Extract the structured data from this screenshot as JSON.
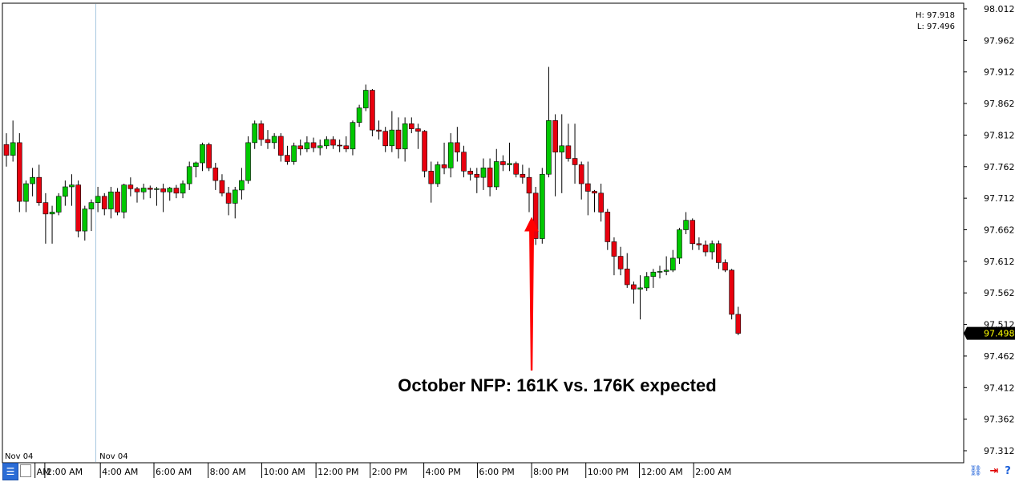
{
  "header": {
    "high_label": "H: 97.918",
    "low_label": "L: 97.496"
  },
  "price_tag": "97.498",
  "annotation": "October NFP: 161K vs. 176K expected",
  "colors": {
    "bull": "#00c800",
    "bear": "#e8000e",
    "wick": "#000000",
    "grid": "#c8c8c8",
    "arrow": "#ff0000",
    "price_tag_bg": "#000000",
    "price_tag_fg": "#ffff00"
  },
  "icons": {
    "left_toolbar": "grid-icon",
    "right_toolbar": [
      "link-icon",
      "arrow-right-icon",
      "help-icon"
    ]
  },
  "chart_data": {
    "type": "candlestick",
    "y_ticks": [
      "98.012",
      "97.962",
      "97.912",
      "97.862",
      "97.812",
      "97.762",
      "97.712",
      "97.662",
      "97.612",
      "97.562",
      "97.512",
      "97.462",
      "97.412",
      "97.362",
      "97.312"
    ],
    "x_labels": [
      {
        "label": "Nov 04",
        "row": "top",
        "bar": 0
      },
      {
        "label": "Nov 04",
        "row": "top",
        "bar": 14.5
      },
      {
        "label": "AM",
        "row": "bottom",
        "bar": 4.5
      },
      {
        "label": "2:00 AM",
        "row": "bottom",
        "bar": 6
      },
      {
        "label": "4:00 AM",
        "row": "bottom",
        "bar": 14.5
      },
      {
        "label": "6:00 AM",
        "row": "bottom",
        "bar": 22.7
      },
      {
        "label": "8:00 AM",
        "row": "bottom",
        "bar": 31
      },
      {
        "label": "10:00 AM",
        "row": "bottom",
        "bar": 39.2
      },
      {
        "label": "12:00 PM",
        "row": "bottom",
        "bar": 47.5
      },
      {
        "label": "2:00 PM",
        "row": "bottom",
        "bar": 55.8
      },
      {
        "label": "4:00 PM",
        "row": "bottom",
        "bar": 64
      },
      {
        "label": "6:00 PM",
        "row": "bottom",
        "bar": 72.2
      },
      {
        "label": "8:00 PM",
        "row": "bottom",
        "bar": 80.5
      },
      {
        "label": "10:00 PM",
        "row": "bottom",
        "bar": 88.8
      },
      {
        "label": "12:00 AM",
        "row": "bottom",
        "bar": 97
      },
      {
        "label": "2:00 AM",
        "row": "bottom",
        "bar": 105.3
      }
    ],
    "ylim": [
      97.312,
      98.012
    ],
    "high": 97.918,
    "low": 97.496,
    "last": 97.498,
    "event_bar": 80.5,
    "ohlc": [
      [
        97.797,
        97.815,
        97.762,
        97.78
      ],
      [
        97.78,
        97.835,
        97.77,
        97.8
      ],
      [
        97.8,
        97.815,
        97.69,
        97.707
      ],
      [
        97.707,
        97.74,
        97.69,
        97.735
      ],
      [
        97.735,
        97.76,
        97.715,
        97.745
      ],
      [
        97.745,
        97.765,
        97.7,
        97.705
      ],
      [
        97.705,
        97.72,
        97.64,
        97.687
      ],
      [
        97.687,
        97.7,
        97.64,
        97.69
      ],
      [
        97.69,
        97.72,
        97.685,
        97.715
      ],
      [
        97.715,
        97.74,
        97.7,
        97.73
      ],
      [
        97.73,
        97.75,
        97.7,
        97.733
      ],
      [
        97.733,
        97.74,
        97.65,
        97.66
      ],
      [
        97.66,
        97.7,
        97.645,
        97.695
      ],
      [
        97.695,
        97.71,
        97.66,
        97.705
      ],
      [
        97.705,
        97.73,
        97.69,
        97.715
      ],
      [
        97.715,
        97.72,
        97.685,
        97.695
      ],
      [
        97.695,
        97.73,
        97.68,
        97.722
      ],
      [
        97.722,
        97.728,
        97.685,
        97.69
      ],
      [
        97.69,
        97.735,
        97.68,
        97.733
      ],
      [
        97.733,
        97.745,
        97.715,
        97.727
      ],
      [
        97.727,
        97.73,
        97.705,
        97.722
      ],
      [
        97.722,
        97.735,
        97.71,
        97.728
      ],
      [
        97.728,
        97.732,
        97.712,
        97.726
      ],
      [
        97.726,
        97.73,
        97.7,
        97.727
      ],
      [
        97.727,
        97.735,
        97.69,
        97.722
      ],
      [
        97.722,
        97.73,
        97.708,
        97.728
      ],
      [
        97.728,
        97.733,
        97.712,
        97.72
      ],
      [
        97.72,
        97.74,
        97.712,
        97.735
      ],
      [
        97.735,
        97.77,
        97.725,
        97.762
      ],
      [
        97.762,
        97.77,
        97.745,
        97.768
      ],
      [
        97.768,
        97.8,
        97.755,
        97.797
      ],
      [
        97.797,
        97.8,
        97.755,
        97.76
      ],
      [
        97.76,
        97.768,
        97.725,
        97.74
      ],
      [
        97.74,
        97.75,
        97.715,
        97.72
      ],
      [
        97.72,
        97.73,
        97.685,
        97.704
      ],
      [
        97.704,
        97.73,
        97.68,
        97.725
      ],
      [
        97.725,
        97.76,
        97.71,
        97.74
      ],
      [
        97.74,
        97.81,
        97.735,
        97.8
      ],
      [
        97.8,
        97.835,
        97.79,
        97.83
      ],
      [
        97.83,
        97.835,
        97.795,
        97.805
      ],
      [
        97.805,
        97.82,
        97.79,
        97.8
      ],
      [
        97.8,
        97.815,
        97.79,
        97.81
      ],
      [
        97.81,
        97.815,
        97.77,
        97.78
      ],
      [
        97.78,
        97.795,
        97.765,
        97.77
      ],
      [
        97.77,
        97.8,
        97.765,
        97.795
      ],
      [
        97.795,
        97.805,
        97.78,
        97.79
      ],
      [
        97.79,
        97.81,
        97.785,
        97.8
      ],
      [
        97.8,
        97.808,
        97.785,
        97.792
      ],
      [
        97.792,
        97.805,
        97.78,
        97.795
      ],
      [
        97.795,
        97.81,
        97.79,
        97.805
      ],
      [
        97.805,
        97.81,
        97.79,
        97.796
      ],
      [
        97.796,
        97.805,
        97.785,
        97.795
      ],
      [
        97.795,
        97.81,
        97.785,
        97.79
      ],
      [
        97.79,
        97.835,
        97.78,
        97.832
      ],
      [
        97.832,
        97.86,
        97.825,
        97.855
      ],
      [
        97.855,
        97.892,
        97.85,
        97.883
      ],
      [
        97.883,
        97.885,
        97.81,
        97.82
      ],
      [
        97.82,
        97.835,
        97.805,
        97.818
      ],
      [
        97.818,
        97.825,
        97.785,
        97.795
      ],
      [
        97.795,
        97.85,
        97.785,
        97.82
      ],
      [
        97.82,
        97.84,
        97.775,
        97.79
      ],
      [
        97.79,
        97.84,
        97.77,
        97.83
      ],
      [
        97.83,
        97.84,
        97.815,
        97.822
      ],
      [
        97.822,
        97.83,
        97.79,
        97.818
      ],
      [
        97.818,
        97.82,
        97.745,
        97.755
      ],
      [
        97.755,
        97.77,
        97.705,
        97.735
      ],
      [
        97.735,
        97.77,
        97.73,
        97.765
      ],
      [
        97.765,
        97.8,
        97.75,
        97.76
      ],
      [
        97.76,
        97.815,
        97.745,
        97.8
      ],
      [
        97.8,
        97.825,
        97.77,
        97.785
      ],
      [
        97.785,
        97.795,
        97.745,
        97.755
      ],
      [
        97.755,
        97.76,
        97.74,
        97.75
      ],
      [
        97.75,
        97.76,
        97.72,
        97.745
      ],
      [
        97.745,
        97.775,
        97.725,
        97.76
      ],
      [
        97.76,
        97.775,
        97.715,
        97.73
      ],
      [
        97.73,
        97.79,
        97.725,
        97.77
      ],
      [
        97.77,
        97.78,
        97.755,
        97.765
      ],
      [
        97.765,
        97.8,
        97.755,
        97.767
      ],
      [
        97.767,
        97.77,
        97.745,
        97.75
      ],
      [
        97.75,
        97.765,
        97.735,
        97.745
      ],
      [
        97.745,
        97.76,
        97.69,
        97.72
      ],
      [
        97.72,
        97.73,
        97.638,
        97.648
      ],
      [
        97.648,
        97.76,
        97.64,
        97.75
      ],
      [
        97.75,
        97.92,
        97.745,
        97.835
      ],
      [
        97.835,
        97.845,
        97.715,
        97.785
      ],
      [
        97.785,
        97.845,
        97.72,
        97.795
      ],
      [
        97.795,
        97.83,
        97.77,
        97.775
      ],
      [
        97.775,
        97.83,
        97.735,
        97.765
      ],
      [
        97.765,
        97.77,
        97.71,
        97.735
      ],
      [
        97.735,
        97.77,
        97.685,
        97.723
      ],
      [
        97.723,
        97.725,
        97.69,
        97.72
      ],
      [
        97.72,
        97.735,
        97.675,
        97.69
      ],
      [
        97.69,
        97.695,
        97.63,
        97.643
      ],
      [
        97.643,
        97.65,
        97.59,
        97.62
      ],
      [
        97.62,
        97.635,
        97.59,
        97.6
      ],
      [
        97.6,
        97.625,
        97.57,
        97.575
      ],
      [
        97.575,
        97.58,
        97.545,
        97.568
      ],
      [
        97.568,
        97.59,
        97.52,
        97.57
      ],
      [
        97.57,
        97.595,
        97.565,
        97.588
      ],
      [
        97.588,
        97.6,
        97.57,
        97.595
      ],
      [
        97.595,
        97.605,
        97.585,
        97.596
      ],
      [
        97.596,
        97.62,
        97.59,
        97.598
      ],
      [
        97.598,
        97.63,
        97.595,
        97.617
      ],
      [
        97.617,
        97.665,
        97.608,
        97.662
      ],
      [
        97.662,
        97.69,
        97.655,
        97.677
      ],
      [
        97.677,
        97.68,
        97.63,
        97.64
      ],
      [
        97.64,
        97.65,
        97.63,
        97.638
      ],
      [
        97.638,
        97.645,
        97.62,
        97.627
      ],
      [
        97.627,
        97.645,
        97.615,
        97.64
      ],
      [
        97.64,
        97.645,
        97.6,
        97.61
      ],
      [
        97.61,
        97.615,
        97.595,
        97.598
      ],
      [
        97.598,
        97.6,
        97.52,
        97.528
      ],
      [
        97.528,
        97.54,
        97.495,
        97.498
      ]
    ]
  }
}
